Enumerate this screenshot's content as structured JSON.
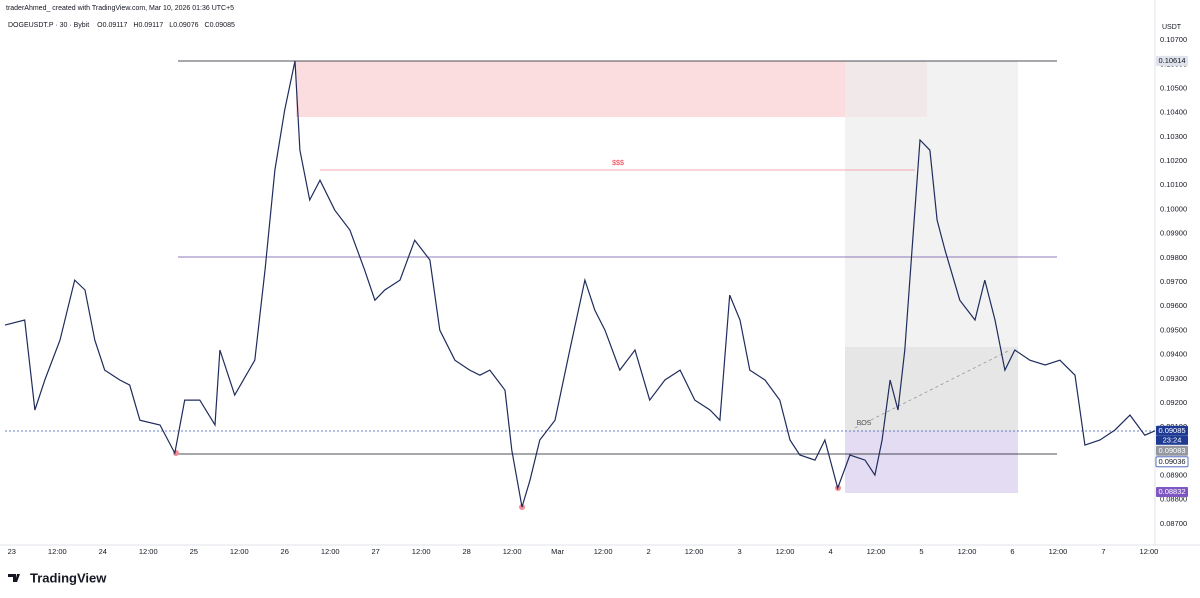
{
  "chart_data": {
    "type": "line",
    "header": "traderAhmed_ created with TradingView.com, Mar 10, 2026 01:36 UTC+5",
    "symbol": "DOGEUSDT.P · 30 · Bybit",
    "ohlc": [
      {
        "label": "O",
        "value": 0.09117
      },
      {
        "label": "H",
        "value": 0.09117
      },
      {
        "label": "L",
        "value": 0.09076
      },
      {
        "label": "C",
        "value": 0.09085
      }
    ],
    "currency": "USDT",
    "logo": "TradingView",
    "annotations": [
      "$$$",
      "BOS"
    ],
    "countdown": "23:24",
    "color": "#1f2c5c",
    "x": [
      -1.8,
      3.4,
      6.1,
      8.7,
      12.7,
      16.6,
      19.3,
      21.9,
      24.5,
      28.5,
      31.1,
      33.8,
      39.1,
      43.0,
      45.6,
      49.6,
      53.6,
      54.9,
      58.8,
      64.1,
      66.8,
      69.4,
      72.0,
      74.7,
      76.0,
      78.6,
      81.3,
      85.2,
      89.2,
      93.1,
      95.8,
      98.4,
      102.4,
      106.3,
      110.3,
      112.9,
      116.9,
      120.8,
      123.5,
      126.1,
      130.1,
      131.9,
      134.6,
      136.7,
      139.3,
      143.3,
      147.2,
      151.2,
      153.8,
      156.5,
      160.4,
      164.4,
      168.3,
      172.3,
      176.3,
      180.2,
      184.2,
      186.8,
      189.4,
      192.1,
      194.7,
      198.7,
      202.6,
      205.3,
      207.9,
      211.9,
      214.5,
      217.9,
      221.1,
      225.1,
      227.7,
      229.6,
      231.7,
      233.8,
      235.6,
      237.5,
      239.6,
      242.2,
      244.1,
      246.2,
      250.1,
      254.1,
      256.7,
      259.4,
      262.0,
      264.6,
      268.6,
      272.6,
      276.5,
      280.5,
      283.1,
      287.1,
      291.0,
      295.0,
      298.9,
      301.6
    ],
    "values": [
      0.09522,
      0.09543,
      0.09171,
      0.09295,
      0.0946,
      0.09708,
      0.09667,
      0.0946,
      0.09336,
      0.09295,
      0.09274,
      0.09129,
      0.09109,
      0.08993,
      0.09212,
      0.09212,
      0.09109,
      0.09419,
      0.09233,
      0.09377,
      0.09749,
      0.10163,
      0.10411,
      0.10614,
      0.10245,
      0.10039,
      0.10121,
      0.09997,
      0.09915,
      0.09749,
      0.09625,
      0.09667,
      0.09708,
      0.09873,
      0.09791,
      0.09501,
      0.09377,
      0.09336,
      0.09315,
      0.09336,
      0.09253,
      0.09005,
      0.0877,
      0.08881,
      0.09047,
      0.09129,
      0.09419,
      0.09708,
      0.09584,
      0.09501,
      0.09336,
      0.09419,
      0.09212,
      0.09295,
      0.09336,
      0.09212,
      0.09171,
      0.09129,
      0.09646,
      0.09543,
      0.09336,
      0.09295,
      0.09212,
      0.09047,
      0.08985,
      0.08964,
      0.09047,
      0.08848,
      0.08985,
      0.08964,
      0.08902,
      0.09047,
      0.09295,
      0.09171,
      0.09419,
      0.09832,
      0.10287,
      0.10245,
      0.09956,
      0.09832,
      0.09625,
      0.09543,
      0.09708,
      0.09543,
      0.09336,
      0.09419,
      0.09377,
      0.09357,
      0.09377,
      0.09315,
      0.09026,
      0.09047,
      0.09088,
      0.0915,
      0.09067,
      0.09085
    ],
    "xlim": [
      -1.8,
      301.6
    ],
    "xticks": [
      {
        "value": 0,
        "label": "23"
      },
      {
        "value": 12,
        "label": "12:00"
      },
      {
        "value": 24,
        "label": "24"
      },
      {
        "value": 36,
        "label": "12:00"
      },
      {
        "value": 48,
        "label": "25"
      },
      {
        "value": 60,
        "label": "12:00"
      },
      {
        "value": 72,
        "label": "26"
      },
      {
        "value": 84,
        "label": "12:00"
      },
      {
        "value": 96,
        "label": "27"
      },
      {
        "value": 108,
        "label": "12:00"
      },
      {
        "value": 120,
        "label": "28"
      },
      {
        "value": 132,
        "label": "12:00"
      },
      {
        "value": 144,
        "label": "Mar"
      },
      {
        "value": 156,
        "label": "12:00"
      },
      {
        "value": 168,
        "label": "2"
      },
      {
        "value": 180,
        "label": "12:00"
      },
      {
        "value": 192,
        "label": "3"
      },
      {
        "value": 204,
        "label": "12:00"
      },
      {
        "value": 216,
        "label": "4"
      },
      {
        "value": 228,
        "label": "12:00"
      },
      {
        "value": 240,
        "label": "5"
      },
      {
        "value": 252,
        "label": "12:00"
      },
      {
        "value": 264,
        "label": "6"
      },
      {
        "value": 276,
        "label": "12:00"
      },
      {
        "value": 288,
        "label": "7"
      },
      {
        "value": 300,
        "label": "12:00"
      }
    ],
    "ylim": [
      0.08613,
      0.10783
    ],
    "yticks": [
      {
        "value": 0.087,
        "label": "0.08700"
      },
      {
        "value": 0.088,
        "label": "0.08800"
      },
      {
        "value": 0.089,
        "label": "0.08900"
      },
      {
        "value": 0.09,
        "label": "0.09000"
      },
      {
        "value": 0.091,
        "label": "0.09100"
      },
      {
        "value": 0.092,
        "label": "0.09200"
      },
      {
        "value": 0.093,
        "label": "0.09300"
      },
      {
        "value": 0.094,
        "label": "0.09400"
      },
      {
        "value": 0.095,
        "label": "0.09500"
      },
      {
        "value": 0.096,
        "label": "0.09600"
      },
      {
        "value": 0.097,
        "label": "0.09700"
      },
      {
        "value": 0.098,
        "label": "0.09800"
      },
      {
        "value": 0.099,
        "label": "0.09900"
      },
      {
        "value": 0.1,
        "label": "0.10000"
      },
      {
        "value": 0.101,
        "label": "0.10100"
      },
      {
        "value": 0.102,
        "label": "0.10200"
      },
      {
        "value": 0.103,
        "label": "0.10300"
      },
      {
        "value": 0.104,
        "label": "0.10400"
      },
      {
        "value": 0.105,
        "label": "0.10500"
      },
      {
        "value": 0.106,
        "label": "0.10600"
      },
      {
        "value": 0.107,
        "label": "0.10700"
      }
    ],
    "grid": false,
    "price_labels": [
      {
        "value": 0.10614,
        "label": "0.10614",
        "color": "#e0e3eb"
      },
      {
        "value": 0.09085,
        "label": "0.09085",
        "color": "#1f3a93"
      },
      {
        "value": 0.09083,
        "label": "0.09083",
        "color": "#9598a1"
      },
      {
        "value": 0.09036,
        "label": "0.09036",
        "color": "#ffffff"
      },
      {
        "value": 0.08832,
        "label": "0.08832",
        "color": "#7e57c2"
      }
    ]
  }
}
